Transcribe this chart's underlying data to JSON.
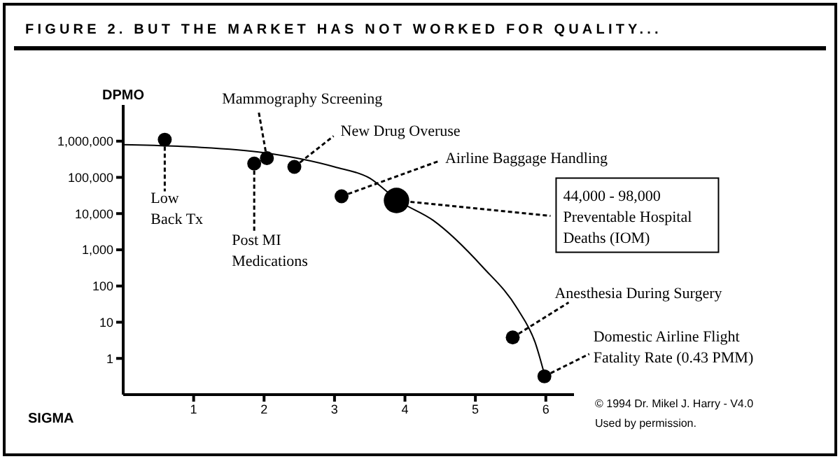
{
  "chart_data": {
    "type": "line",
    "title": "FIGURE 2. BUT THE MARKET HAS NOT WORKED FOR QUALITY...",
    "xlabel": "SIGMA",
    "ylabel": "DPMO",
    "log": "y",
    "grid": false,
    "xlim": [
      0,
      6.4
    ],
    "xticks": [
      1,
      2,
      3,
      4,
      5,
      6
    ],
    "ylim": [
      0.1,
      10000000
    ],
    "yticks": [
      {
        "value": 1,
        "label": "1"
      },
      {
        "value": 10,
        "label": "10"
      },
      {
        "value": 100,
        "label": "100"
      },
      {
        "value": 1000,
        "label": "1,000"
      },
      {
        "value": 10000,
        "label": "10,000"
      },
      {
        "value": 100000,
        "label": "100,000"
      },
      {
        "value": 1000000,
        "label": "1,000,000"
      }
    ],
    "series": [
      {
        "color": "#000000",
        "x": [
          0,
          1,
          2,
          3,
          3.5,
          3.9,
          4.4,
          5.1,
          5.6,
          5.85,
          6.0
        ],
        "values": [
          800000,
          690000,
          480000,
          195000,
          95000,
          23000,
          6500,
          340,
          23,
          2.7,
          0.26
        ]
      },
      {
        "type": "bubble",
        "color": "#000000",
        "x": [
          0.59,
          1.86,
          2.04,
          2.43,
          3.1,
          3.88,
          5.53,
          5.98
        ],
        "values": [
          1100000,
          240000,
          340000,
          195000,
          30000,
          23000,
          3.8,
          0.32
        ],
        "sizes": [
          0.3,
          0.3,
          0.3,
          0.3,
          0.3,
          1,
          0.3,
          0.3
        ]
      }
    ],
    "annotations": [
      {
        "text": "Low\nBack Tx",
        "x": 0.59,
        "y": 1100000
      },
      {
        "text": "Post MI\nMedications",
        "x": 1.86,
        "y": 240000
      },
      {
        "text": "Mammography Screening",
        "x": 2.04,
        "y": 340000
      },
      {
        "text": "New Drug Overuse",
        "x": 2.43,
        "y": 195000
      },
      {
        "text": "Airline Baggage Handling",
        "x": 3.1,
        "y": 30000
      },
      {
        "text": "44,000 - 98,000\nPreventable Hospital\nDeaths (IOM)",
        "x": 3.88,
        "y": 23000
      },
      {
        "text": "Anesthesia During Surgery",
        "x": 5.53,
        "y": 3.8
      },
      {
        "text": "Domestic Airline Flight\nFatality Rate (0.43 PMM)",
        "x": 5.98,
        "y": 0.32
      },
      "© 1994 Dr. Mikel J. Harry - V4.0",
      "Used by permission."
    ]
  }
}
